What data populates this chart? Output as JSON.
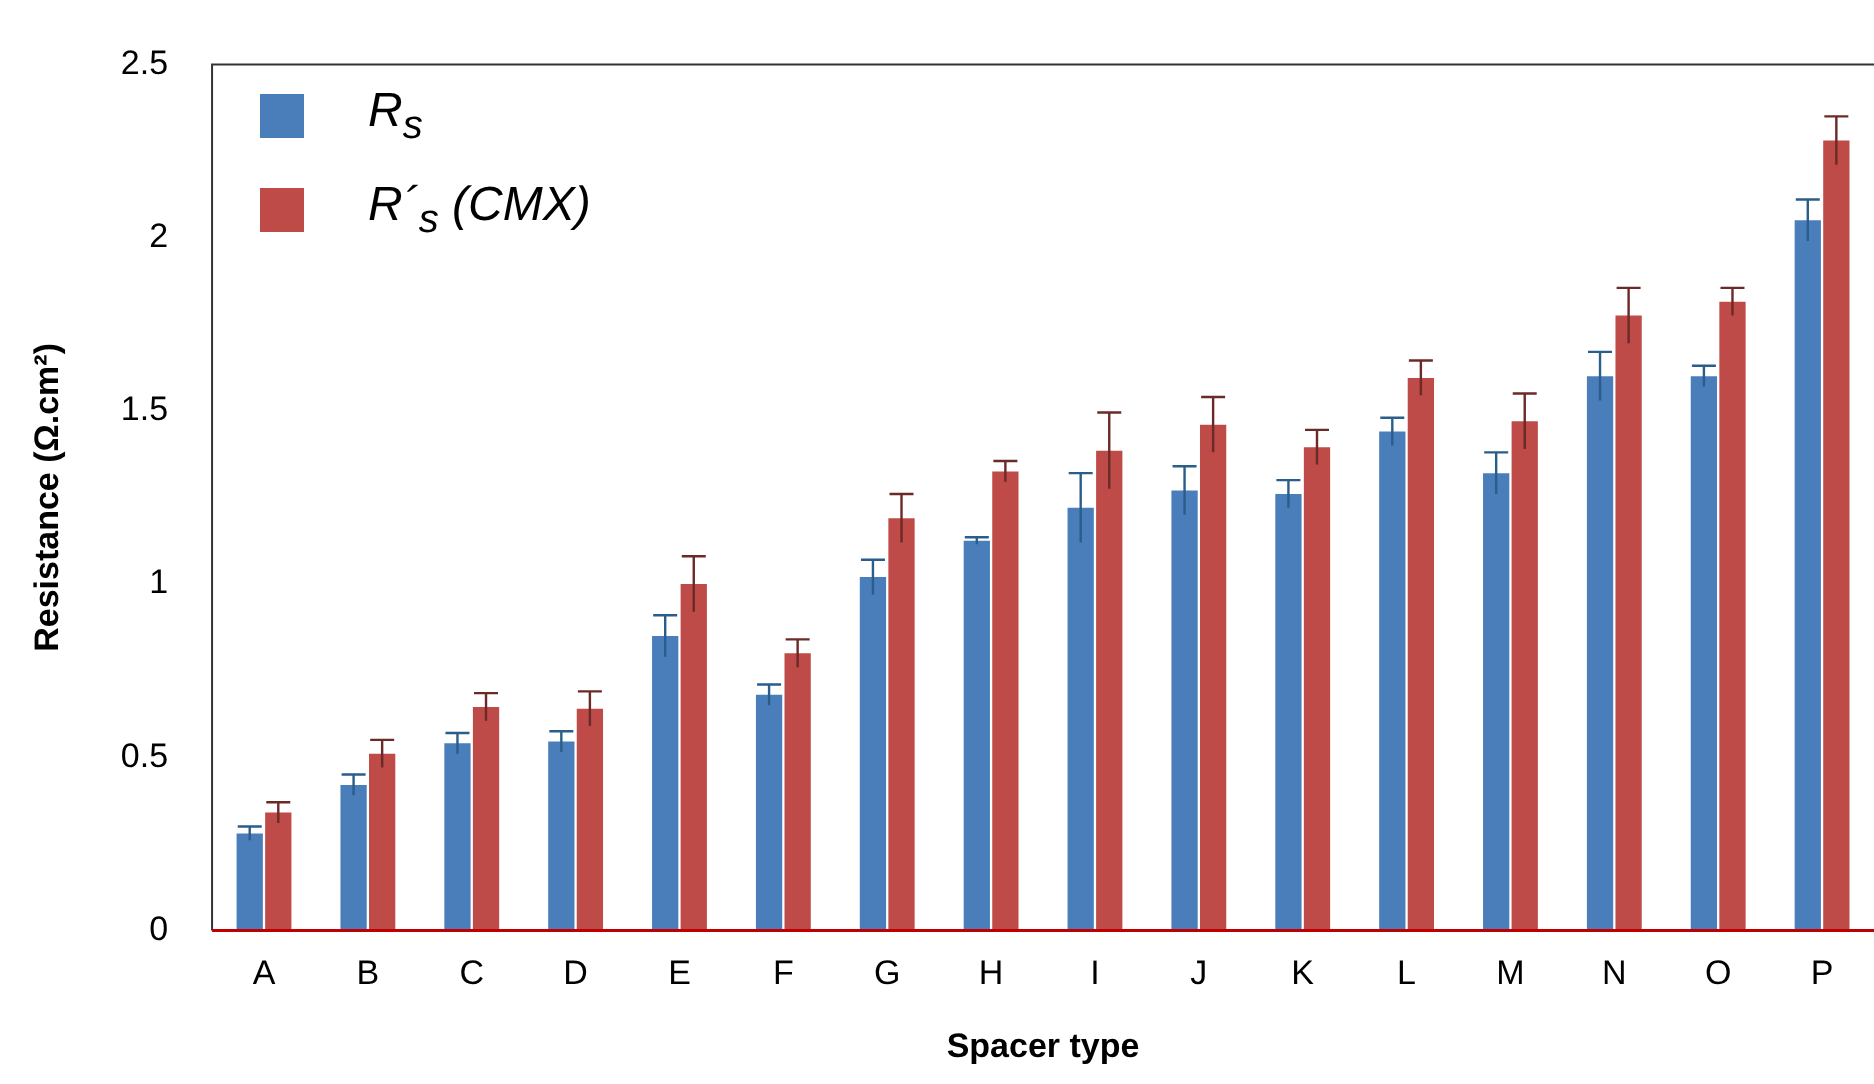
{
  "chart_data": {
    "type": "bar",
    "xlabel": "Spacer type",
    "ylabel": "Resistance (Ω.cm²)",
    "categories": [
      "A",
      "B",
      "C",
      "D",
      "E",
      "F",
      "G",
      "H",
      "I",
      "J",
      "K",
      "L",
      "M",
      "N",
      "O",
      "P"
    ],
    "series": [
      {
        "name": "R$_{s}$",
        "color": "#4a7ebb",
        "values": [
          0.28,
          0.42,
          0.54,
          0.545,
          0.85,
          0.68,
          1.02,
          1.125,
          1.22,
          1.27,
          1.26,
          1.44,
          1.32,
          1.6,
          1.6,
          2.05
        ],
        "errors": [
          0.02,
          0.03,
          0.03,
          0.03,
          0.06,
          0.03,
          0.05,
          0.01,
          0.1,
          0.07,
          0.04,
          0.04,
          0.06,
          0.07,
          0.03,
          0.06
        ]
      },
      {
        "name": "R´$_{s}$ (CMX)",
        "color": "#be4b48",
        "values": [
          0.34,
          0.51,
          0.645,
          0.64,
          1.0,
          0.8,
          1.19,
          1.325,
          1.385,
          1.46,
          1.395,
          1.595,
          1.47,
          1.775,
          1.815,
          2.28
        ],
        "errors": [
          0.03,
          0.04,
          0.04,
          0.05,
          0.08,
          0.04,
          0.07,
          0.03,
          0.11,
          0.08,
          0.05,
          0.05,
          0.08,
          0.08,
          0.04,
          0.07
        ]
      }
    ],
    "ylim": [
      0,
      2.5
    ],
    "yticks": [
      0,
      0.5,
      1,
      1.5,
      2,
      2.5
    ],
    "grid": false,
    "legend": "top left"
  }
}
